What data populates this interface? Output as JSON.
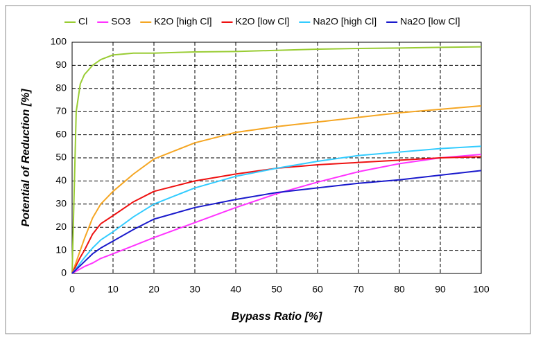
{
  "chart_data": {
    "type": "line",
    "xlabel": "Bypass Ratio [%]",
    "ylabel": "Potential of Reduction [%]",
    "x": [
      0,
      1,
      2,
      3,
      5,
      7,
      10,
      15,
      20,
      30,
      40,
      50,
      60,
      70,
      80,
      90,
      100
    ],
    "series": [
      {
        "name": "Cl",
        "color": "#99cc33",
        "values": [
          0,
          70,
          82,
          86,
          90,
          92.5,
          94.5,
          95.3,
          95.3,
          95.8,
          96,
          96.5,
          97,
          97.3,
          97.5,
          97.8,
          98
        ]
      },
      {
        "name": "SO3",
        "color": "#ff33ff",
        "values": [
          0,
          1,
          2,
          3,
          4.5,
          6.5,
          8.5,
          12,
          15.5,
          22,
          28.5,
          34.5,
          39.5,
          44,
          47.5,
          50,
          51.5
        ]
      },
      {
        "name": "K2O [high Cl]",
        "color": "#f5a623",
        "values": [
          0,
          5,
          10,
          15,
          24,
          30,
          35.5,
          43,
          49.5,
          56.5,
          61,
          63.5,
          65.5,
          67.5,
          69.5,
          71,
          72.5
        ]
      },
      {
        "name": "K2O [low Cl]",
        "color": "#ee1111",
        "values": [
          0,
          3.5,
          7,
          10,
          17,
          21.5,
          25,
          31,
          35.5,
          40,
          43,
          45.5,
          47,
          48,
          49,
          50,
          50.5
        ]
      },
      {
        "name": "Na2O [high Cl]",
        "color": "#33ccff",
        "values": [
          0,
          2.2,
          4.5,
          6.8,
          11,
          14.5,
          18,
          24.5,
          30,
          37,
          42,
          45.5,
          48.5,
          51,
          52.5,
          54,
          55
        ]
      },
      {
        "name": "Na2O [low Cl]",
        "color": "#1a1acc",
        "values": [
          0,
          1.7,
          3.4,
          5.1,
          8.5,
          11,
          14,
          19,
          23.5,
          28.5,
          32,
          35,
          37,
          39,
          40.5,
          42.5,
          44.5
        ]
      }
    ],
    "xlim": [
      0,
      100
    ],
    "xticks": [
      0,
      10,
      20,
      30,
      40,
      50,
      60,
      70,
      80,
      90,
      100
    ],
    "ylim": [
      0,
      100
    ],
    "yticks": [
      0,
      10,
      20,
      30,
      40,
      50,
      60,
      70,
      80,
      90,
      100
    ],
    "grid": true,
    "legend": "top"
  }
}
